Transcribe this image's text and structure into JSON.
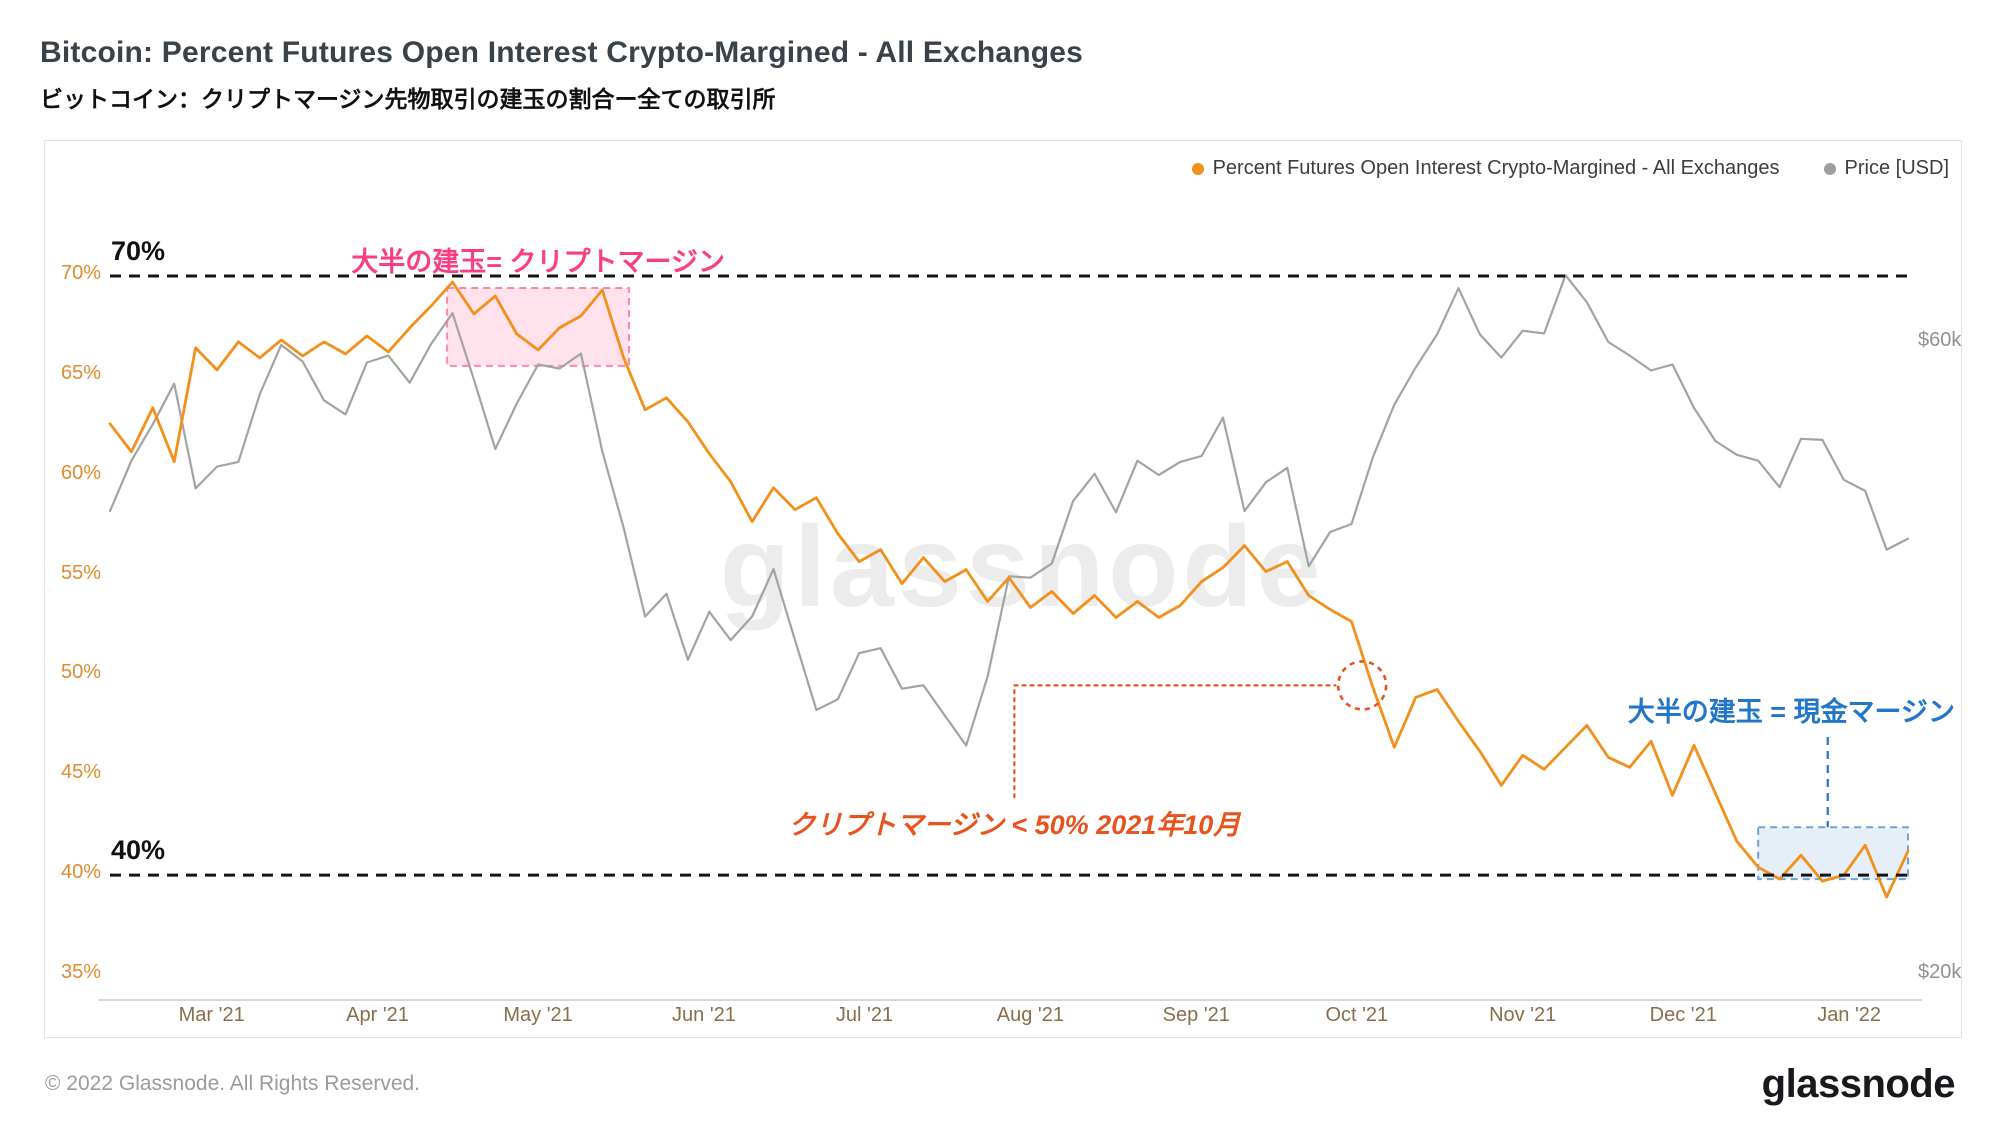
{
  "header": {
    "title": "Bitcoin: Percent Futures Open Interest Crypto-Margined - All Exchanges",
    "subtitle_ja": "ビットコイン：クリプトマージン先物取引の建玉の割合ー全ての取引所"
  },
  "legend": [
    {
      "label": "Percent Futures Open Interest Crypto-Margined - All Exchanges",
      "color": "#f2901b"
    },
    {
      "label": "Price [USD]",
      "color": "#9e9e9e"
    }
  ],
  "watermark": "glassnode",
  "footer": {
    "copyright": "© 2022 Glassnode. All Rights Reserved.",
    "logo": "glassnode"
  },
  "chart_data": {
    "type": "line",
    "start_date": "2021-02-10",
    "interval_days": 4,
    "end_date": "2022-01-12",
    "x_ticks": [
      {
        "label": "Mar '21",
        "day": 19
      },
      {
        "label": "Apr '21",
        "day": 50
      },
      {
        "label": "May '21",
        "day": 80
      },
      {
        "label": "Jun '21",
        "day": 111
      },
      {
        "label": "Jul '21",
        "day": 141
      },
      {
        "label": "Aug '21",
        "day": 172
      },
      {
        "label": "Sep '21",
        "day": 203
      },
      {
        "label": "Oct '21",
        "day": 233
      },
      {
        "label": "Nov '21",
        "day": 264
      },
      {
        "label": "Dec '21",
        "day": 294
      },
      {
        "label": "Jan '22",
        "day": 325
      }
    ],
    "percent_axis": {
      "ticks": [
        "70%",
        "65%",
        "60%",
        "55%",
        "50%",
        "45%",
        "40%",
        "35%"
      ],
      "tick_values": [
        70,
        65,
        60,
        55,
        50,
        45,
        40,
        35
      ],
      "unit": "%"
    },
    "price_axis": {
      "ticks": [
        "$60k",
        "$20k"
      ],
      "tick_values": [
        60000,
        20000
      ],
      "scale": "log",
      "unit": "USD"
    },
    "series": [
      {
        "name": "Percent Futures Open Interest Crypto-Margined - All Exchanges",
        "axis": "percent",
        "color": "#f2901b",
        "values": [
          62.6,
          61.2,
          63.4,
          60.7,
          66.4,
          65.3,
          66.7,
          65.9,
          66.8,
          66.0,
          66.7,
          66.1,
          67.0,
          66.2,
          67.4,
          68.5,
          69.7,
          68.1,
          69.0,
          67.1,
          66.3,
          67.4,
          68.0,
          69.3,
          65.9,
          63.3,
          63.9,
          62.7,
          61.1,
          59.7,
          57.7,
          59.4,
          58.3,
          58.9,
          57.1,
          55.7,
          56.3,
          54.6,
          55.9,
          54.7,
          55.3,
          53.7,
          54.9,
          53.4,
          54.2,
          53.1,
          54.0,
          52.9,
          53.7,
          52.9,
          53.5,
          54.7,
          55.4,
          56.5,
          55.2,
          55.7,
          54.0,
          53.3,
          52.7,
          49.4,
          46.4,
          48.9,
          49.3,
          47.7,
          46.2,
          44.5,
          46.0,
          45.3,
          46.4,
          47.5,
          45.9,
          45.4,
          46.7,
          44.0,
          46.5,
          44.1,
          41.7,
          40.4,
          39.8,
          41.0,
          39.7,
          40.0,
          41.5,
          38.9,
          41.2
        ]
      },
      {
        "name": "Price [USD]",
        "axis": "price",
        "color": "#a3a3a3",
        "values": [
          44800,
          48900,
          52100,
          55900,
          46600,
          48400,
          48800,
          54900,
          59800,
          58100,
          54300,
          53000,
          58000,
          58700,
          56000,
          59900,
          63200,
          56300,
          49900,
          54000,
          57800,
          57400,
          58900,
          49700,
          43500,
          37300,
          38800,
          34600,
          37600,
          35800,
          37300,
          40500,
          35800,
          31700,
          32300,
          35000,
          35300,
          32900,
          33100,
          31400,
          29800,
          33600,
          40000,
          39900,
          40900,
          45600,
          47800,
          44700,
          48900,
          47700,
          48800,
          49300,
          52700,
          44800,
          47100,
          48300,
          40700,
          43200,
          43800,
          49200,
          53900,
          57500,
          60900,
          66000,
          60900,
          58500,
          61300,
          61000,
          67500,
          64400,
          60100,
          58700,
          57200,
          57800,
          53600,
          50600,
          49400,
          48900,
          46700,
          50800,
          50700,
          47300,
          46400,
          41900,
          42700
        ]
      }
    ],
    "reference_lines": [
      {
        "value": 70,
        "label": "70%"
      },
      {
        "value": 40,
        "label": "40%"
      }
    ],
    "annotations": {
      "pink": {
        "text": "大半の建玉= クリプトマージン",
        "color": "#fa3e81",
        "box": {
          "day_start": 63,
          "day_end": 97,
          "pct_min": 65.5,
          "pct_max": 69.4
        }
      },
      "red": {
        "text": "クリプトマージン < 50% 2021年10月",
        "color": "#e8521c",
        "leader_day": 169,
        "leader_pct_from": 43.9,
        "level_pct": 49.5,
        "level_day_end": 229,
        "circle_day": 234,
        "circle_pct": 49.5
      },
      "blue": {
        "text": "大半の建玉 = 現金マージン",
        "color": "#2176c7",
        "pointer_day": 321,
        "box": {
          "day_start": 308,
          "day_end": 336,
          "pct_min": 39.8,
          "pct_max": 42.4
        }
      }
    }
  }
}
